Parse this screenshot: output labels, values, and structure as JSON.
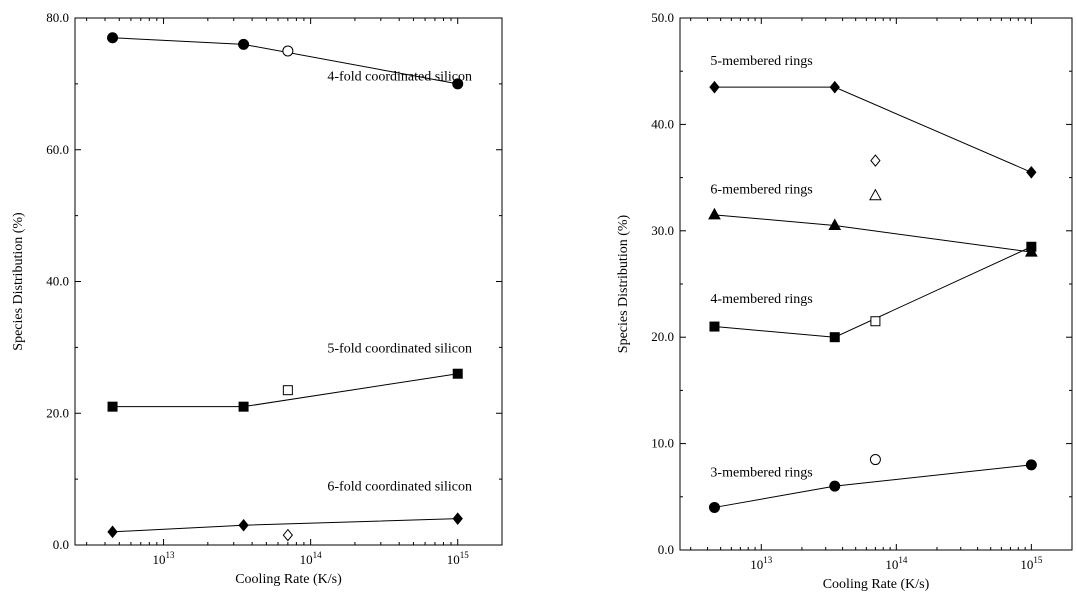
{
  "chart_data": [
    {
      "type": "scatter",
      "xlabel": "Cooling Rate (K/s)",
      "ylabel": "Species Distribution (%)",
      "xscale": "log",
      "xlim": [
        2500000000000.0,
        2000000000000000.0
      ],
      "ylim": [
        0,
        80
      ],
      "xticks": [
        {
          "base": "10",
          "exp": "13"
        },
        {
          "base": "10",
          "exp": "14"
        },
        {
          "base": "10",
          "exp": "15"
        }
      ],
      "xtick_values": [
        10000000000000.0,
        100000000000000.0,
        1000000000000000.0
      ],
      "yticks": [
        "0.0",
        "20.0",
        "40.0",
        "60.0",
        "80.0"
      ],
      "ytick_values": [
        0,
        20,
        40,
        60,
        80
      ],
      "grid": false,
      "series": [
        {
          "label": "4-fold coordinated silicon",
          "marker": "circle",
          "filled": true,
          "line": true,
          "x": [
            4500000000000.0,
            35000000000000.0,
            1000000000000000.0
          ],
          "y": [
            77,
            76,
            70
          ]
        },
        {
          "marker": "circle",
          "filled": false,
          "line": false,
          "x": [
            70000000000000.0
          ],
          "y": [
            75
          ]
        },
        {
          "label": "5-fold coordinated silicon",
          "marker": "square",
          "filled": true,
          "line": true,
          "x": [
            4500000000000.0,
            35000000000000.0,
            1000000000000000.0
          ],
          "y": [
            21,
            21,
            26
          ]
        },
        {
          "marker": "square",
          "filled": false,
          "line": false,
          "x": [
            70000000000000.0
          ],
          "y": [
            23.5
          ]
        },
        {
          "label": "6-fold coordinated silicon",
          "marker": "diamond",
          "filled": true,
          "line": true,
          "x": [
            4500000000000.0,
            35000000000000.0,
            1000000000000000.0
          ],
          "y": [
            2,
            3,
            4
          ]
        },
        {
          "marker": "diamond",
          "filled": false,
          "line": false,
          "x": [
            70000000000000.0
          ],
          "y": [
            1.5
          ]
        }
      ],
      "annotations": [
        {
          "text": "4-fold coordinated silicon",
          "x": 130000000000000.0,
          "y": 70.5
        },
        {
          "text": "5-fold coordinated silicon",
          "x": 130000000000000.0,
          "y": 29.2
        },
        {
          "text": "6-fold coordinated silicon",
          "x": 130000000000000.0,
          "y": 8.3
        }
      ]
    },
    {
      "type": "scatter",
      "xlabel": "Cooling Rate (K/s)",
      "ylabel": "Species Distribution (%)",
      "xscale": "log",
      "xlim": [
        2500000000000.0,
        2000000000000000.0
      ],
      "ylim": [
        0,
        50
      ],
      "xticks": [
        {
          "base": "10",
          "exp": "13"
        },
        {
          "base": "10",
          "exp": "14"
        },
        {
          "base": "10",
          "exp": "15"
        }
      ],
      "xtick_values": [
        10000000000000.0,
        100000000000000.0,
        1000000000000000.0
      ],
      "yticks": [
        "0.0",
        "10.0",
        "20.0",
        "30.0",
        "40.0",
        "50.0"
      ],
      "ytick_values": [
        0,
        10,
        20,
        30,
        40,
        50
      ],
      "grid": false,
      "series": [
        {
          "label": "5-membered rings",
          "marker": "diamond",
          "filled": true,
          "line": true,
          "x": [
            4500000000000.0,
            35000000000000.0,
            1000000000000000.0
          ],
          "y": [
            43.5,
            43.5,
            35.5
          ]
        },
        {
          "marker": "diamond",
          "filled": false,
          "line": false,
          "x": [
            70000000000000.0
          ],
          "y": [
            36.6
          ]
        },
        {
          "label": "6-membered rings",
          "marker": "triangle",
          "filled": true,
          "line": true,
          "x": [
            4500000000000.0,
            35000000000000.0,
            1000000000000000.0
          ],
          "y": [
            31.5,
            30.5,
            28
          ]
        },
        {
          "marker": "triangle",
          "filled": false,
          "line": false,
          "x": [
            70000000000000.0
          ],
          "y": [
            33.3
          ]
        },
        {
          "label": "4-membered rings",
          "marker": "square",
          "filled": true,
          "line": true,
          "x": [
            4500000000000.0,
            35000000000000.0,
            1000000000000000.0
          ],
          "y": [
            21,
            20,
            28.5
          ]
        },
        {
          "marker": "square",
          "filled": false,
          "line": false,
          "x": [
            70000000000000.0
          ],
          "y": [
            21.5
          ]
        },
        {
          "label": "3-membered rings",
          "marker": "circle",
          "filled": true,
          "line": true,
          "x": [
            4500000000000.0,
            35000000000000.0,
            1000000000000000.0
          ],
          "y": [
            4,
            6,
            8
          ]
        },
        {
          "marker": "circle",
          "filled": false,
          "line": false,
          "x": [
            70000000000000.0
          ],
          "y": [
            8.5
          ]
        }
      ],
      "annotations": [
        {
          "text": "5-membered rings",
          "x": 4200000000000.0,
          "y": 45.6
        },
        {
          "text": "6-membered rings",
          "x": 4200000000000.0,
          "y": 33.5
        },
        {
          "text": "4-membered rings",
          "x": 4200000000000.0,
          "y": 23.2
        },
        {
          "text": "3-membered rings",
          "x": 4200000000000.0,
          "y": 6.9
        }
      ]
    }
  ]
}
